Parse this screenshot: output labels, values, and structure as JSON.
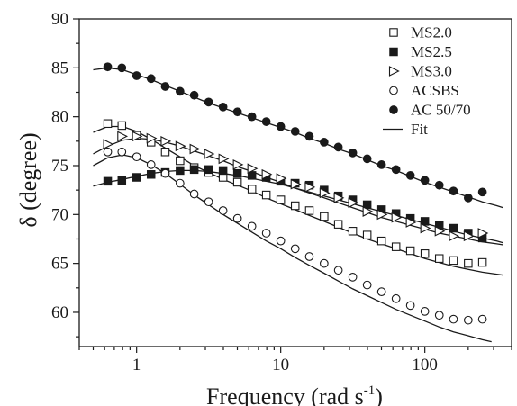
{
  "chart_data": {
    "type": "scatter",
    "xlabel_main": "Frequency (rad s",
    "xlabel_sup": "-1",
    "xlabel_tail": ")",
    "ylabel": "δ (degree)",
    "x_scale": "log",
    "xlim": [
      0.4,
      400
    ],
    "ylim": [
      56.5,
      90
    ],
    "x_ticks": [
      {
        "value": 1,
        "label": "1"
      },
      {
        "value": 10,
        "label": "10"
      },
      {
        "value": 100,
        "label": "100"
      }
    ],
    "y_ticks": [
      {
        "value": 60,
        "label": "60"
      },
      {
        "value": 65,
        "label": "65"
      },
      {
        "value": 70,
        "label": "70"
      },
      {
        "value": 75,
        "label": "75"
      },
      {
        "value": 80,
        "label": "80"
      },
      {
        "value": 85,
        "label": "85"
      },
      {
        "value": 90,
        "label": "90"
      }
    ],
    "grid": false,
    "legend_position": "top-right",
    "series": [
      {
        "name": "MS2.0",
        "marker": "open-square",
        "points": [
          [
            0.63,
            79.3
          ],
          [
            0.79,
            79.1
          ],
          [
            1.0,
            78.1
          ],
          [
            1.26,
            77.4
          ],
          [
            1.58,
            76.4
          ],
          [
            2.0,
            75.5
          ],
          [
            2.51,
            74.8
          ],
          [
            3.16,
            74.3
          ],
          [
            3.98,
            73.8
          ],
          [
            5.01,
            73.3
          ],
          [
            6.31,
            72.6
          ],
          [
            7.94,
            72.0
          ],
          [
            10.0,
            71.5
          ],
          [
            12.6,
            70.9
          ],
          [
            15.8,
            70.4
          ],
          [
            20.0,
            69.8
          ],
          [
            25.1,
            69.0
          ],
          [
            31.6,
            68.3
          ],
          [
            39.8,
            67.9
          ],
          [
            50.1,
            67.3
          ],
          [
            63.1,
            66.7
          ],
          [
            79.4,
            66.3
          ],
          [
            100,
            66.0
          ],
          [
            126,
            65.5
          ],
          [
            158,
            65.3
          ],
          [
            200,
            65.0
          ],
          [
            251,
            65.1
          ]
        ],
        "fit": [
          [
            0.5,
            78.4
          ],
          [
            0.63,
            79.0
          ],
          [
            0.8,
            79.0
          ],
          [
            1.0,
            78.5
          ],
          [
            1.26,
            77.7
          ],
          [
            1.58,
            76.8
          ],
          [
            2.0,
            75.9
          ],
          [
            2.51,
            75.0
          ],
          [
            3.16,
            74.3
          ],
          [
            3.98,
            73.6
          ],
          [
            5.01,
            73.0
          ],
          [
            6.31,
            72.4
          ],
          [
            7.94,
            71.7
          ],
          [
            10,
            71.1
          ],
          [
            12.6,
            70.5
          ],
          [
            15.8,
            69.9
          ],
          [
            20,
            69.3
          ],
          [
            25.1,
            68.7
          ],
          [
            31.6,
            68.1
          ],
          [
            39.8,
            67.5
          ],
          [
            50.1,
            67.0
          ],
          [
            63.1,
            66.5
          ],
          [
            79.4,
            66.0
          ],
          [
            100,
            65.5
          ],
          [
            126,
            65.1
          ],
          [
            158,
            64.7
          ],
          [
            200,
            64.4
          ],
          [
            251,
            64.1
          ],
          [
            316,
            63.9
          ],
          [
            350,
            63.8
          ]
        ]
      },
      {
        "name": "MS2.5",
        "marker": "filled-square",
        "points": [
          [
            0.63,
            73.4
          ],
          [
            0.79,
            73.5
          ],
          [
            1.0,
            73.8
          ],
          [
            1.26,
            74.1
          ],
          [
            1.58,
            74.3
          ],
          [
            2.0,
            74.5
          ],
          [
            2.51,
            74.6
          ],
          [
            3.16,
            74.6
          ],
          [
            3.98,
            74.5
          ],
          [
            5.01,
            74.2
          ],
          [
            6.31,
            74.0
          ],
          [
            7.94,
            73.8
          ],
          [
            10.0,
            73.4
          ],
          [
            12.6,
            73.2
          ],
          [
            15.8,
            73.0
          ],
          [
            20.0,
            72.5
          ],
          [
            25.1,
            71.9
          ],
          [
            31.6,
            71.5
          ],
          [
            39.8,
            71.0
          ],
          [
            50.1,
            70.5
          ],
          [
            63.1,
            70.1
          ],
          [
            79.4,
            69.6
          ],
          [
            100,
            69.3
          ],
          [
            126,
            68.9
          ],
          [
            158,
            68.6
          ],
          [
            200,
            68.1
          ],
          [
            251,
            67.6
          ]
        ],
        "fit": [
          [
            0.5,
            72.9
          ],
          [
            0.63,
            73.3
          ],
          [
            0.8,
            73.6
          ],
          [
            1.0,
            73.9
          ],
          [
            1.26,
            74.2
          ],
          [
            1.58,
            74.4
          ],
          [
            2.0,
            74.5
          ],
          [
            2.51,
            74.5
          ],
          [
            3.16,
            74.4
          ],
          [
            3.98,
            74.2
          ],
          [
            5.01,
            74.0
          ],
          [
            6.31,
            73.7
          ],
          [
            7.94,
            73.4
          ],
          [
            10,
            73.1
          ],
          [
            12.6,
            72.7
          ],
          [
            15.8,
            72.3
          ],
          [
            20,
            71.9
          ],
          [
            25.1,
            71.5
          ],
          [
            31.6,
            71.1
          ],
          [
            39.8,
            70.7
          ],
          [
            50.1,
            70.3
          ],
          [
            63.1,
            69.9
          ],
          [
            79.4,
            69.5
          ],
          [
            100,
            69.1
          ],
          [
            126,
            68.7
          ],
          [
            158,
            68.3
          ],
          [
            200,
            67.9
          ],
          [
            251,
            67.6
          ],
          [
            316,
            67.3
          ],
          [
            350,
            67.1
          ]
        ]
      },
      {
        "name": "MS3.0",
        "marker": "open-triangle-right",
        "points": [
          [
            0.63,
            77.2
          ],
          [
            0.79,
            78.0
          ],
          [
            1.0,
            78.0
          ],
          [
            1.26,
            77.8
          ],
          [
            1.58,
            77.5
          ],
          [
            2.0,
            77.0
          ],
          [
            2.51,
            76.7
          ],
          [
            3.16,
            76.2
          ],
          [
            3.98,
            75.7
          ],
          [
            5.01,
            75.1
          ],
          [
            6.31,
            74.7
          ],
          [
            7.94,
            74.1
          ],
          [
            10.0,
            73.7
          ],
          [
            12.6,
            73.1
          ],
          [
            15.8,
            72.8
          ],
          [
            20.0,
            72.2
          ],
          [
            25.1,
            71.7
          ],
          [
            31.6,
            71.2
          ],
          [
            39.8,
            70.3
          ],
          [
            50.1,
            70.0
          ],
          [
            63.1,
            69.7
          ],
          [
            79.4,
            69.2
          ],
          [
            100,
            68.6
          ],
          [
            126,
            68.3
          ],
          [
            158,
            67.8
          ],
          [
            200,
            67.8
          ],
          [
            251,
            68.1
          ]
        ],
        "fit": [
          [
            0.5,
            76.2
          ],
          [
            0.63,
            77.0
          ],
          [
            0.8,
            77.6
          ],
          [
            1.0,
            77.8
          ],
          [
            1.26,
            77.7
          ],
          [
            1.58,
            77.4
          ],
          [
            2.0,
            77.0
          ],
          [
            2.51,
            76.5
          ],
          [
            3.16,
            76.0
          ],
          [
            3.98,
            75.5
          ],
          [
            5.01,
            74.9
          ],
          [
            6.31,
            74.4
          ],
          [
            7.94,
            73.8
          ],
          [
            10,
            73.3
          ],
          [
            12.6,
            72.7
          ],
          [
            15.8,
            72.2
          ],
          [
            20,
            71.7
          ],
          [
            25.1,
            71.2
          ],
          [
            31.6,
            70.7
          ],
          [
            39.8,
            70.2
          ],
          [
            50.1,
            69.7
          ],
          [
            63.1,
            69.3
          ],
          [
            79.4,
            68.9
          ],
          [
            100,
            68.5
          ],
          [
            126,
            68.1
          ],
          [
            158,
            67.8
          ],
          [
            200,
            67.5
          ],
          [
            251,
            67.2
          ],
          [
            316,
            67.0
          ],
          [
            350,
            66.9
          ]
        ]
      },
      {
        "name": "ACSBS",
        "marker": "open-circle",
        "points": [
          [
            0.63,
            76.4
          ],
          [
            0.79,
            76.4
          ],
          [
            1.0,
            75.9
          ],
          [
            1.26,
            75.1
          ],
          [
            1.58,
            74.2
          ],
          [
            2.0,
            73.2
          ],
          [
            2.51,
            72.1
          ],
          [
            3.16,
            71.3
          ],
          [
            3.98,
            70.4
          ],
          [
            5.01,
            69.6
          ],
          [
            6.31,
            68.8
          ],
          [
            7.94,
            68.1
          ],
          [
            10.0,
            67.3
          ],
          [
            12.6,
            66.5
          ],
          [
            15.8,
            65.7
          ],
          [
            20.0,
            65.0
          ],
          [
            25.1,
            64.3
          ],
          [
            31.6,
            63.6
          ],
          [
            39.8,
            62.8
          ],
          [
            50.1,
            62.1
          ],
          [
            63.1,
            61.4
          ],
          [
            79.4,
            60.7
          ],
          [
            100,
            60.1
          ],
          [
            126,
            59.7
          ],
          [
            158,
            59.3
          ],
          [
            200,
            59.2
          ],
          [
            251,
            59.3
          ]
        ],
        "fit": [
          [
            0.5,
            75.0
          ],
          [
            0.63,
            75.8
          ],
          [
            0.8,
            76.1
          ],
          [
            1.0,
            75.8
          ],
          [
            1.26,
            75.1
          ],
          [
            1.58,
            74.2
          ],
          [
            2.0,
            73.1
          ],
          [
            2.51,
            72.0
          ],
          [
            3.16,
            71.0
          ],
          [
            3.98,
            70.0
          ],
          [
            5.01,
            69.1
          ],
          [
            6.31,
            68.2
          ],
          [
            7.94,
            67.3
          ],
          [
            10,
            66.5
          ],
          [
            12.6,
            65.6
          ],
          [
            15.8,
            64.8
          ],
          [
            20,
            64.0
          ],
          [
            25.1,
            63.2
          ],
          [
            31.6,
            62.4
          ],
          [
            39.8,
            61.7
          ],
          [
            50.1,
            61.0
          ],
          [
            63.1,
            60.3
          ],
          [
            79.4,
            59.7
          ],
          [
            100,
            59.1
          ],
          [
            126,
            58.5
          ],
          [
            158,
            58.0
          ],
          [
            200,
            57.6
          ],
          [
            251,
            57.2
          ],
          [
            290,
            57.0
          ]
        ]
      },
      {
        "name": "AC 50/70",
        "marker": "filled-circle",
        "points": [
          [
            0.63,
            85.1
          ],
          [
            0.79,
            85.0
          ],
          [
            1.0,
            84.2
          ],
          [
            1.26,
            83.9
          ],
          [
            1.58,
            83.1
          ],
          [
            2.0,
            82.6
          ],
          [
            2.51,
            82.2
          ],
          [
            3.16,
            81.5
          ],
          [
            3.98,
            81.0
          ],
          [
            5.01,
            80.5
          ],
          [
            6.31,
            80.0
          ],
          [
            7.94,
            79.5
          ],
          [
            10.0,
            79.0
          ],
          [
            12.6,
            78.5
          ],
          [
            15.8,
            78.0
          ],
          [
            20.0,
            77.4
          ],
          [
            25.1,
            76.9
          ],
          [
            31.6,
            76.3
          ],
          [
            39.8,
            75.7
          ],
          [
            50.1,
            75.1
          ],
          [
            63.1,
            74.6
          ],
          [
            79.4,
            74.0
          ],
          [
            100,
            73.5
          ],
          [
            126,
            73.0
          ],
          [
            158,
            72.4
          ],
          [
            200,
            71.7
          ],
          [
            251,
            72.3
          ]
        ],
        "fit": [
          [
            0.5,
            84.8
          ],
          [
            0.63,
            85.0
          ],
          [
            0.8,
            84.8
          ],
          [
            1.0,
            84.3
          ],
          [
            1.26,
            83.8
          ],
          [
            1.58,
            83.2
          ],
          [
            2.0,
            82.6
          ],
          [
            2.51,
            82.0
          ],
          [
            3.16,
            81.4
          ],
          [
            3.98,
            80.9
          ],
          [
            5.01,
            80.4
          ],
          [
            6.31,
            79.9
          ],
          [
            7.94,
            79.4
          ],
          [
            10,
            78.9
          ],
          [
            12.6,
            78.4
          ],
          [
            15.8,
            77.8
          ],
          [
            20,
            77.3
          ],
          [
            25.1,
            76.7
          ],
          [
            31.6,
            76.2
          ],
          [
            39.8,
            75.6
          ],
          [
            50.1,
            75.0
          ],
          [
            63.1,
            74.5
          ],
          [
            79.4,
            73.9
          ],
          [
            100,
            73.3
          ],
          [
            126,
            72.8
          ],
          [
            158,
            72.3
          ],
          [
            200,
            71.8
          ],
          [
            251,
            71.3
          ],
          [
            316,
            70.9
          ],
          [
            350,
            70.7
          ]
        ]
      }
    ],
    "legend": [
      {
        "label": "MS2.0",
        "marker": "open-square"
      },
      {
        "label": "MS2.5",
        "marker": "filled-square"
      },
      {
        "label": "MS3.0",
        "marker": "open-triangle-right"
      },
      {
        "label": "ACSBS",
        "marker": "open-circle"
      },
      {
        "label": "AC 50/70",
        "marker": "filled-circle"
      },
      {
        "label": "Fit",
        "marker": "line"
      }
    ],
    "colors": {
      "ink": "#1a1a1a",
      "background": "#ffffff"
    }
  }
}
